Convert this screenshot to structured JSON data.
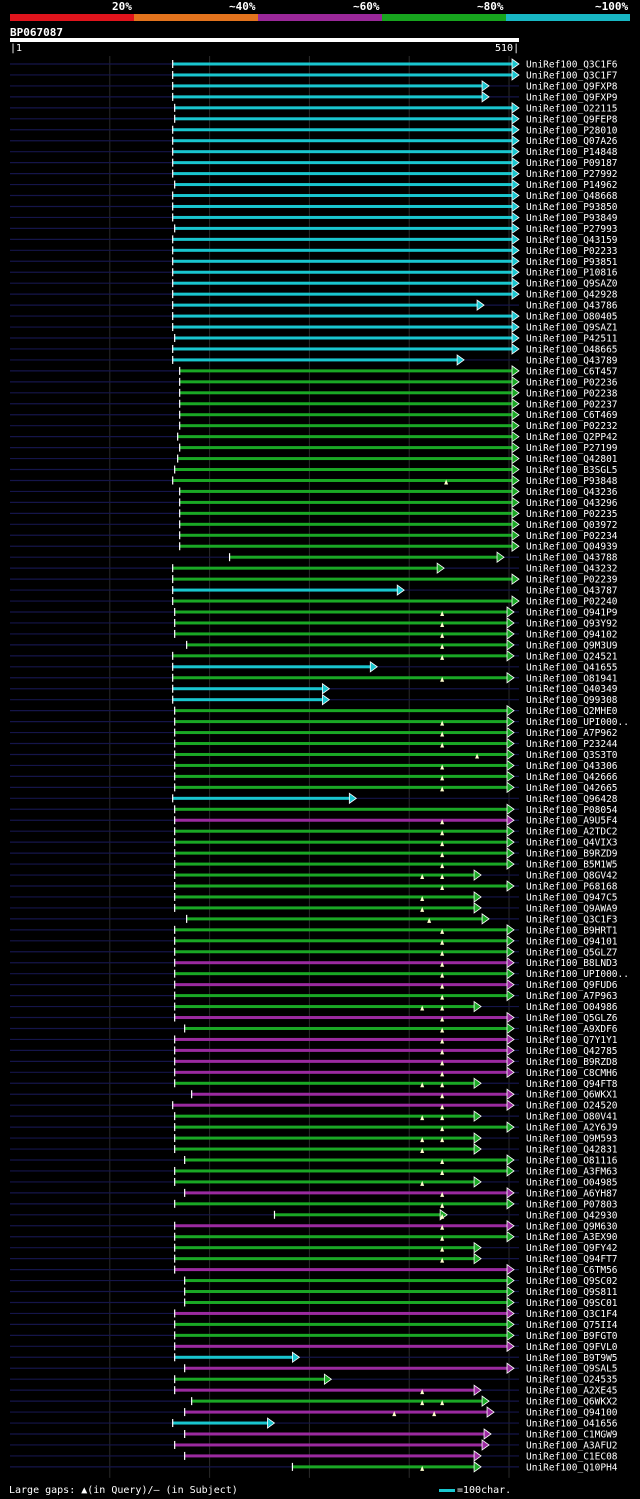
{
  "legend": {
    "items": [
      {
        "label": "20%",
        "color": "#e0141c"
      },
      {
        "label": "~40%",
        "color": "#e2731d"
      },
      {
        "label": "~60%",
        "color": "#9a2899"
      },
      {
        "label": "~80%",
        "color": "#17a51e"
      },
      {
        "label": "~100%",
        "color": "#18b7c4"
      }
    ]
  },
  "query": {
    "id": "BP067087",
    "start_label": "1",
    "end_label": "510",
    "length": 510
  },
  "footer": {
    "gaps_text": "Large gaps: ▲(in Query)/— (in Subject)",
    "scale_text": "=100char."
  },
  "chart_data": {
    "type": "alignment",
    "x_range": [
      1,
      510
    ],
    "gridlines": [
      100,
      200,
      300,
      400,
      500
    ],
    "colors": {
      "cyan": "#19c6cf",
      "green": "#1aa825",
      "purple": "#9b2aa0"
    },
    "hits": [
      {
        "name": "UniRef100_Q3C1F6",
        "start": 163,
        "end": 510,
        "color": "cyan"
      },
      {
        "name": "UniRef100_Q3C1F7",
        "start": 163,
        "end": 510,
        "color": "cyan"
      },
      {
        "name": "UniRef100_Q9FXP8",
        "start": 163,
        "end": 480,
        "color": "cyan"
      },
      {
        "name": "UniRef100_Q9FXP9",
        "start": 163,
        "end": 480,
        "color": "cyan"
      },
      {
        "name": "UniRef100_O22115",
        "start": 165,
        "end": 510,
        "color": "cyan"
      },
      {
        "name": "UniRef100_Q9FEP8",
        "start": 165,
        "end": 510,
        "color": "cyan"
      },
      {
        "name": "UniRef100_P28010",
        "start": 163,
        "end": 510,
        "color": "cyan"
      },
      {
        "name": "UniRef100_Q07A26",
        "start": 163,
        "end": 510,
        "color": "cyan"
      },
      {
        "name": "UniRef100_P14848",
        "start": 163,
        "end": 510,
        "color": "cyan"
      },
      {
        "name": "UniRef100_P09187",
        "start": 163,
        "end": 510,
        "color": "cyan"
      },
      {
        "name": "UniRef100_P27992",
        "start": 163,
        "end": 510,
        "color": "cyan"
      },
      {
        "name": "UniRef100_P14962",
        "start": 165,
        "end": 510,
        "color": "cyan"
      },
      {
        "name": "UniRef100_Q48668",
        "start": 163,
        "end": 510,
        "color": "cyan"
      },
      {
        "name": "UniRef100_P93850",
        "start": 163,
        "end": 510,
        "color": "cyan"
      },
      {
        "name": "UniRef100_P93849",
        "start": 163,
        "end": 510,
        "color": "cyan"
      },
      {
        "name": "UniRef100_P27993",
        "start": 165,
        "end": 510,
        "color": "cyan"
      },
      {
        "name": "UniRef100_Q43159",
        "start": 163,
        "end": 510,
        "color": "cyan"
      },
      {
        "name": "UniRef100_P02233",
        "start": 163,
        "end": 510,
        "color": "cyan"
      },
      {
        "name": "UniRef100_P93851",
        "start": 163,
        "end": 510,
        "color": "cyan"
      },
      {
        "name": "UniRef100_P10816",
        "start": 163,
        "end": 510,
        "color": "cyan"
      },
      {
        "name": "UniRef100_Q9SAZ0",
        "start": 163,
        "end": 510,
        "color": "cyan"
      },
      {
        "name": "UniRef100_Q42928",
        "start": 163,
        "end": 510,
        "color": "cyan"
      },
      {
        "name": "UniRef100_Q43786",
        "start": 163,
        "end": 475,
        "color": "cyan"
      },
      {
        "name": "UniRef100_O80405",
        "start": 163,
        "end": 510,
        "color": "cyan"
      },
      {
        "name": "UniRef100_Q9SAZ1",
        "start": 163,
        "end": 510,
        "color": "cyan"
      },
      {
        "name": "UniRef100_P42511",
        "start": 165,
        "end": 510,
        "color": "cyan"
      },
      {
        "name": "UniRef100_O48665",
        "start": 163,
        "end": 510,
        "color": "cyan"
      },
      {
        "name": "UniRef100_Q43789",
        "start": 163,
        "end": 455,
        "color": "cyan"
      },
      {
        "name": "UniRef100_C6T457",
        "start": 170,
        "end": 510,
        "color": "green"
      },
      {
        "name": "UniRef100_P02236",
        "start": 170,
        "end": 510,
        "color": "green"
      },
      {
        "name": "UniRef100_P02238",
        "start": 170,
        "end": 510,
        "color": "green"
      },
      {
        "name": "UniRef100_P02237",
        "start": 170,
        "end": 510,
        "color": "green"
      },
      {
        "name": "UniRef100_C6T469",
        "start": 170,
        "end": 510,
        "color": "green"
      },
      {
        "name": "UniRef100_P02232",
        "start": 170,
        "end": 510,
        "color": "green"
      },
      {
        "name": "UniRef100_Q2PP42",
        "start": 168,
        "end": 510,
        "color": "green"
      },
      {
        "name": "UniRef100_P27199",
        "start": 170,
        "end": 510,
        "color": "green"
      },
      {
        "name": "UniRef100_Q42801",
        "start": 168,
        "end": 510,
        "color": "green"
      },
      {
        "name": "UniRef100_B3SGL5",
        "start": 165,
        "end": 510,
        "color": "green"
      },
      {
        "name": "UniRef100_P93848",
        "start": 163,
        "end": 510,
        "color": "green",
        "gap_q": [
          437
        ]
      },
      {
        "name": "UniRef100_Q43236",
        "start": 170,
        "end": 510,
        "color": "green"
      },
      {
        "name": "UniRef100_Q43296",
        "start": 170,
        "end": 510,
        "color": "green"
      },
      {
        "name": "UniRef100_P02235",
        "start": 170,
        "end": 510,
        "color": "green"
      },
      {
        "name": "UniRef100_Q03972",
        "start": 170,
        "end": 510,
        "color": "green"
      },
      {
        "name": "UniRef100_P02234",
        "start": 170,
        "end": 510,
        "color": "green"
      },
      {
        "name": "UniRef100_Q04939",
        "start": 170,
        "end": 510,
        "color": "green"
      },
      {
        "name": "UniRef100_Q43788",
        "start": 220,
        "end": 495,
        "color": "green"
      },
      {
        "name": "UniRef100_Q43232",
        "start": 163,
        "end": 435,
        "color": "green"
      },
      {
        "name": "UniRef100_P02239",
        "start": 163,
        "end": 510,
        "color": "green"
      },
      {
        "name": "UniRef100_Q43787",
        "start": 163,
        "end": 395,
        "color": "cyan"
      },
      {
        "name": "UniRef100_P02240",
        "start": 163,
        "end": 510,
        "color": "green"
      },
      {
        "name": "UniRef100_Q941P9",
        "start": 165,
        "end": 505,
        "color": "green",
        "gap_q": [
          433
        ]
      },
      {
        "name": "UniRef100_Q93Y92",
        "start": 165,
        "end": 505,
        "color": "green",
        "gap_q": [
          433
        ]
      },
      {
        "name": "UniRef100_Q94102",
        "start": 165,
        "end": 505,
        "color": "green",
        "gap_q": [
          433
        ]
      },
      {
        "name": "UniRef100_Q9M3U9",
        "start": 177,
        "end": 505,
        "color": "green",
        "gap_q": [
          433
        ]
      },
      {
        "name": "UniRef100_Q24521",
        "start": 163,
        "end": 505,
        "color": "green",
        "gap_q": [
          433
        ]
      },
      {
        "name": "UniRef100_Q41655",
        "start": 163,
        "end": 368,
        "color": "cyan"
      },
      {
        "name": "UniRef100_O81941",
        "start": 163,
        "end": 505,
        "color": "green",
        "gap_q": [
          433
        ]
      },
      {
        "name": "UniRef100_Q40349",
        "start": 163,
        "end": 320,
        "color": "cyan"
      },
      {
        "name": "UniRef100_Q99308",
        "start": 163,
        "end": 320,
        "color": "cyan"
      },
      {
        "name": "UniRef100_Q2MHE0",
        "start": 165,
        "end": 505,
        "color": "green"
      },
      {
        "name": "UniRef100_UPI000..",
        "start": 165,
        "end": 505,
        "color": "green",
        "gap_q": [
          433
        ]
      },
      {
        "name": "UniRef100_A7P962",
        "start": 165,
        "end": 505,
        "color": "green",
        "gap_q": [
          433
        ]
      },
      {
        "name": "UniRef100_P23244",
        "start": 165,
        "end": 505,
        "color": "green",
        "gap_q": [
          433
        ]
      },
      {
        "name": "UniRef100_Q3S3T0",
        "start": 165,
        "end": 505,
        "color": "green",
        "gap_q": [
          468
        ]
      },
      {
        "name": "UniRef100_Q43306",
        "start": 165,
        "end": 505,
        "color": "green",
        "gap_q": [
          433
        ]
      },
      {
        "name": "UniRef100_Q42666",
        "start": 165,
        "end": 505,
        "color": "green",
        "gap_q": [
          433
        ]
      },
      {
        "name": "UniRef100_Q42665",
        "start": 165,
        "end": 505,
        "color": "green",
        "gap_q": [
          433
        ]
      },
      {
        "name": "UniRef100_Q96428",
        "start": 163,
        "end": 347,
        "color": "cyan"
      },
      {
        "name": "UniRef100_P08054",
        "start": 165,
        "end": 505,
        "color": "green"
      },
      {
        "name": "UniRef100_A9U5F4",
        "start": 165,
        "end": 505,
        "color": "purple",
        "gap_q": [
          433
        ]
      },
      {
        "name": "UniRef100_A2TDC2",
        "start": 165,
        "end": 505,
        "color": "green",
        "gap_q": [
          433
        ]
      },
      {
        "name": "UniRef100_Q4VIX3",
        "start": 165,
        "end": 505,
        "color": "green",
        "gap_q": [
          433
        ]
      },
      {
        "name": "UniRef100_B9RZD9",
        "start": 165,
        "end": 505,
        "color": "green",
        "gap_q": [
          433
        ]
      },
      {
        "name": "UniRef100_B5M1W5",
        "start": 165,
        "end": 505,
        "color": "green",
        "gap_q": [
          433
        ]
      },
      {
        "name": "UniRef100_Q8GV42",
        "start": 165,
        "end": 472,
        "color": "green",
        "gap_q": [
          413,
          433
        ]
      },
      {
        "name": "UniRef100_P68168",
        "start": 165,
        "end": 505,
        "color": "green",
        "gap_q": [
          433
        ]
      },
      {
        "name": "UniRef100_Q947C5",
        "start": 165,
        "end": 472,
        "color": "green",
        "gap_q": [
          413
        ]
      },
      {
        "name": "UniRef100_Q9AWA9",
        "start": 165,
        "end": 472,
        "color": "green",
        "gap_q": [
          413
        ]
      },
      {
        "name": "UniRef100_Q3C1F3",
        "start": 177,
        "end": 480,
        "color": "green",
        "gap_q": [
          420
        ]
      },
      {
        "name": "UniRef100_B9HRT1",
        "start": 165,
        "end": 505,
        "color": "green",
        "gap_q": [
          433
        ]
      },
      {
        "name": "UniRef100_Q94101",
        "start": 165,
        "end": 505,
        "color": "green",
        "gap_q": [
          433
        ]
      },
      {
        "name": "UniRef100_Q5GLZ7",
        "start": 165,
        "end": 505,
        "color": "green",
        "gap_q": [
          433
        ]
      },
      {
        "name": "UniRef100_B8LND3",
        "start": 165,
        "end": 505,
        "color": "purple",
        "gap_q": [
          433
        ]
      },
      {
        "name": "UniRef100_UPI000..",
        "start": 165,
        "end": 505,
        "color": "green",
        "gap_q": [
          433
        ]
      },
      {
        "name": "UniRef100_Q9FUD6",
        "start": 165,
        "end": 505,
        "color": "purple",
        "gap_q": [
          433
        ]
      },
      {
        "name": "UniRef100_A7P963",
        "start": 165,
        "end": 505,
        "color": "green",
        "gap_q": [
          433
        ]
      },
      {
        "name": "UniRef100_O04986",
        "start": 165,
        "end": 472,
        "color": "green",
        "gap_q": [
          413,
          433
        ]
      },
      {
        "name": "UniRef100_Q5GLZ6",
        "start": 165,
        "end": 505,
        "color": "purple",
        "gap_q": [
          433
        ]
      },
      {
        "name": "UniRef100_A9XDF6",
        "start": 175,
        "end": 505,
        "color": "green",
        "gap_q": [
          433
        ]
      },
      {
        "name": "UniRef100_Q7Y1Y1",
        "start": 165,
        "end": 505,
        "color": "purple",
        "gap_q": [
          433
        ]
      },
      {
        "name": "UniRef100_Q42785",
        "start": 165,
        "end": 505,
        "color": "purple",
        "gap_q": [
          433
        ]
      },
      {
        "name": "UniRef100_B9RZD8",
        "start": 165,
        "end": 505,
        "color": "purple",
        "gap_q": [
          433
        ]
      },
      {
        "name": "UniRef100_C8CMH6",
        "start": 165,
        "end": 505,
        "color": "purple",
        "gap_q": [
          433
        ]
      },
      {
        "name": "UniRef100_Q94FT8",
        "start": 165,
        "end": 472,
        "color": "green",
        "gap_q": [
          413,
          433
        ]
      },
      {
        "name": "UniRef100_Q6WKX1",
        "start": 182,
        "end": 505,
        "color": "purple",
        "gap_q": [
          433
        ]
      },
      {
        "name": "UniRef100_O24520",
        "start": 163,
        "end": 505,
        "color": "purple",
        "gap_q": [
          433
        ]
      },
      {
        "name": "UniRef100_O80V41",
        "start": 165,
        "end": 472,
        "color": "green",
        "gap_q": [
          413,
          433
        ]
      },
      {
        "name": "UniRef100_A2Y6J9",
        "start": 165,
        "end": 505,
        "color": "green",
        "gap_q": [
          433
        ]
      },
      {
        "name": "UniRef100_Q9M593",
        "start": 165,
        "end": 472,
        "color": "green",
        "gap_q": [
          413,
          433
        ]
      },
      {
        "name": "UniRef100_Q42831",
        "start": 165,
        "end": 472,
        "color": "green",
        "gap_q": [
          413
        ]
      },
      {
        "name": "UniRef100_O81116",
        "start": 175,
        "end": 505,
        "color": "green",
        "gap_q": [
          433
        ]
      },
      {
        "name": "UniRef100_A3FM63",
        "start": 165,
        "end": 505,
        "color": "green",
        "gap_q": [
          433
        ]
      },
      {
        "name": "UniRef100_O04985",
        "start": 165,
        "end": 472,
        "color": "green",
        "gap_q": [
          413
        ]
      },
      {
        "name": "UniRef100_A6YH87",
        "start": 175,
        "end": 505,
        "color": "purple",
        "gap_q": [
          433
        ]
      },
      {
        "name": "UniRef100_P07803",
        "start": 165,
        "end": 505,
        "color": "green",
        "gap_q": [
          433
        ]
      },
      {
        "name": "UniRef100_Q42930",
        "start": 265,
        "end": 438,
        "color": "green",
        "gap_q": [
          433
        ]
      },
      {
        "name": "UniRef100_Q9M630",
        "start": 165,
        "end": 505,
        "color": "purple",
        "gap_q": [
          433
        ]
      },
      {
        "name": "UniRef100_A3EX90",
        "start": 165,
        "end": 505,
        "color": "green",
        "gap_q": [
          433
        ]
      },
      {
        "name": "UniRef100_Q9FY42",
        "start": 165,
        "end": 472,
        "color": "green",
        "gap_q": [
          433
        ]
      },
      {
        "name": "UniRef100_Q94FT7",
        "start": 165,
        "end": 472,
        "color": "green",
        "gap_q": [
          433
        ]
      },
      {
        "name": "UniRef100_C6TM56",
        "start": 165,
        "end": 505,
        "color": "purple"
      },
      {
        "name": "UniRef100_Q9SC02",
        "start": 175,
        "end": 505,
        "color": "green"
      },
      {
        "name": "UniRef100_Q9S811",
        "start": 175,
        "end": 505,
        "color": "green"
      },
      {
        "name": "UniRef100_Q9SC01",
        "start": 175,
        "end": 505,
        "color": "green"
      },
      {
        "name": "UniRef100_Q3C1F4",
        "start": 165,
        "end": 505,
        "color": "purple"
      },
      {
        "name": "UniRef100_Q75II4",
        "start": 165,
        "end": 505,
        "color": "green"
      },
      {
        "name": "UniRef100_B9FGT0",
        "start": 165,
        "end": 505,
        "color": "green"
      },
      {
        "name": "UniRef100_Q9FVL0",
        "start": 165,
        "end": 505,
        "color": "purple"
      },
      {
        "name": "UniRef100_B9T9W5",
        "start": 165,
        "end": 290,
        "color": "cyan"
      },
      {
        "name": "UniRef100_Q9SAL5",
        "start": 175,
        "end": 505,
        "color": "purple"
      },
      {
        "name": "UniRef100_O24535",
        "start": 165,
        "end": 322,
        "color": "green"
      },
      {
        "name": "UniRef100_A2XE45",
        "start": 165,
        "end": 472,
        "color": "purple",
        "gap_q": [
          413
        ]
      },
      {
        "name": "UniRef100_Q6WKX2",
        "start": 182,
        "end": 480,
        "color": "green",
        "gap_q": [
          413,
          433
        ]
      },
      {
        "name": "UniRef100_Q94100",
        "start": 175,
        "end": 485,
        "color": "purple",
        "gap_q": [
          385,
          425
        ]
      },
      {
        "name": "UniRef100_O41656",
        "start": 163,
        "end": 265,
        "color": "cyan"
      },
      {
        "name": "UniRef100_C1MGW9",
        "start": 175,
        "end": 482,
        "color": "purple"
      },
      {
        "name": "UniRef100_A3AFU2",
        "start": 165,
        "end": 480,
        "color": "purple"
      },
      {
        "name": "UniRef100_C1EC08",
        "start": 175,
        "end": 472,
        "color": "purple"
      },
      {
        "name": "UniRef100_Q10PH4",
        "start": 283,
        "end": 472,
        "color": "green",
        "gap_q": [
          413
        ]
      }
    ]
  }
}
